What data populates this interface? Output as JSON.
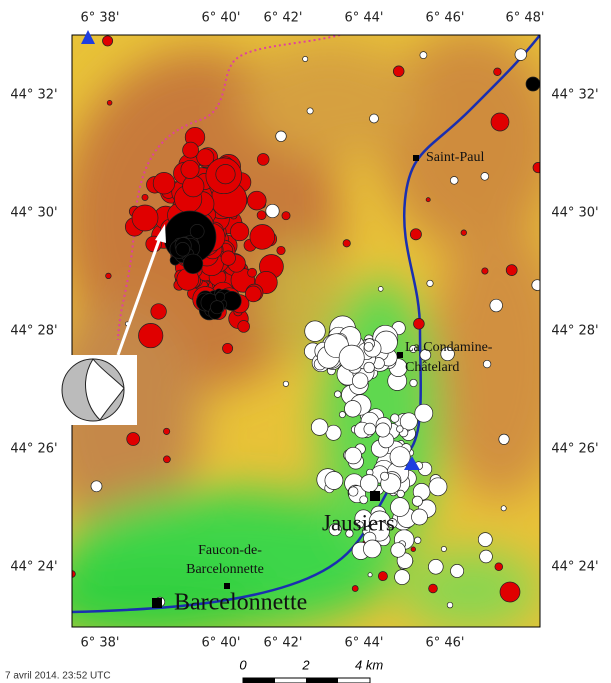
{
  "axes": {
    "top": [
      "6° 38'",
      "6° 40'",
      "6° 42'",
      "6° 44'",
      "6° 46'",
      "6° 48'"
    ],
    "bottom": [
      "6° 38'",
      "6° 40'",
      "6° 42'",
      "6° 44'",
      "6° 46'"
    ],
    "left": [
      "44° 32'",
      "44° 30'",
      "44° 28'",
      "44° 26'",
      "44° 24'"
    ],
    "right": [
      "44° 32'",
      "44° 30'",
      "44° 28'",
      "44° 26'",
      "44° 24'"
    ]
  },
  "places": {
    "saint_paul": "Saint-Paul",
    "condamine_1": "La Condamine-",
    "condamine_2": "Châtelard",
    "jausiers": "Jausiers",
    "faucon_1": "Faucon-de-",
    "faucon_2": "Barcelonnette",
    "barcelonnette": "Barcelonnette"
  },
  "footer": {
    "timestamp": "7 avril 2014. 23:52 UTC",
    "scale_0": "0",
    "scale_2": "2",
    "scale_4": "4 km"
  }
}
